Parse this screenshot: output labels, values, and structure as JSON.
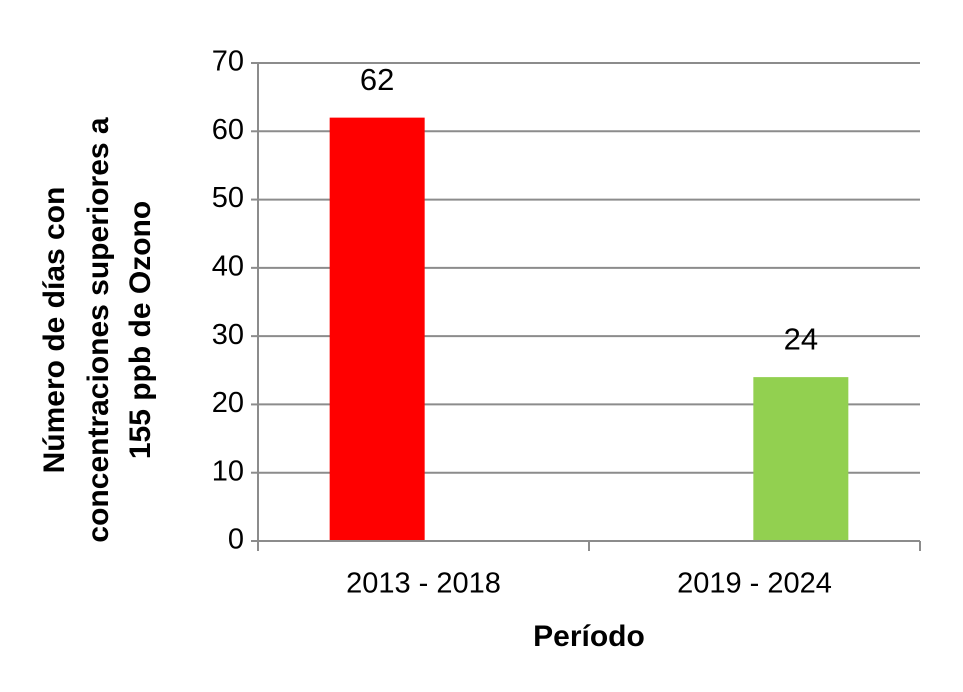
{
  "chart_data": {
    "type": "bar",
    "y_label": [
      "Número de días con",
      "concentraciones superiores a",
      "155 ppb de Ozono"
    ],
    "x_label": "Período",
    "categories": [
      "2013 - 2018",
      "2019 - 2024"
    ],
    "values": [
      62,
      24
    ],
    "colors": [
      "#ff0000",
      "#92d050"
    ],
    "ylim": [
      0,
      70
    ],
    "yticks": [
      0,
      10,
      20,
      30,
      40,
      50,
      60,
      70
    ],
    "grid": true
  }
}
